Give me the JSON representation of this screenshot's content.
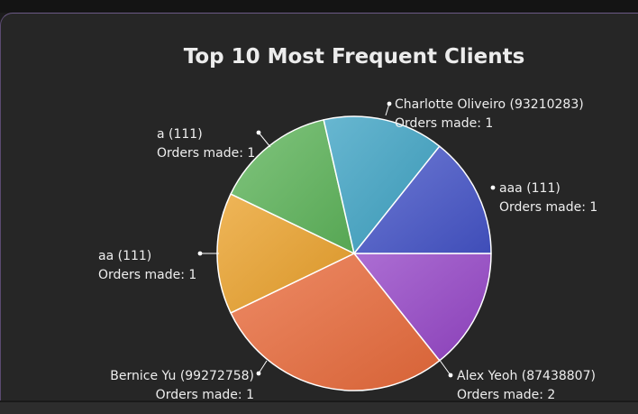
{
  "chart_data": {
    "type": "pie",
    "title": "Top 10 Most Frequent Clients",
    "value_prefix": "Orders made: ",
    "slices": [
      {
        "name": "aaa (111)",
        "value": 1,
        "color": "#9545c7"
      },
      {
        "name": "Alex Yeoh (87438807)",
        "value": 2,
        "color": "#e96a3b"
      },
      {
        "name": "Bernice Yu (99272758)",
        "value": 1,
        "color": "#eba12a"
      },
      {
        "name": "aa (111)",
        "value": 1,
        "color": "#5db45a"
      },
      {
        "name": "a (111)",
        "value": 1,
        "color": "#3ea3c4"
      },
      {
        "name": "Charlotte Oliveiro (93210283)",
        "value": 1,
        "color": "#4554c8"
      }
    ]
  }
}
